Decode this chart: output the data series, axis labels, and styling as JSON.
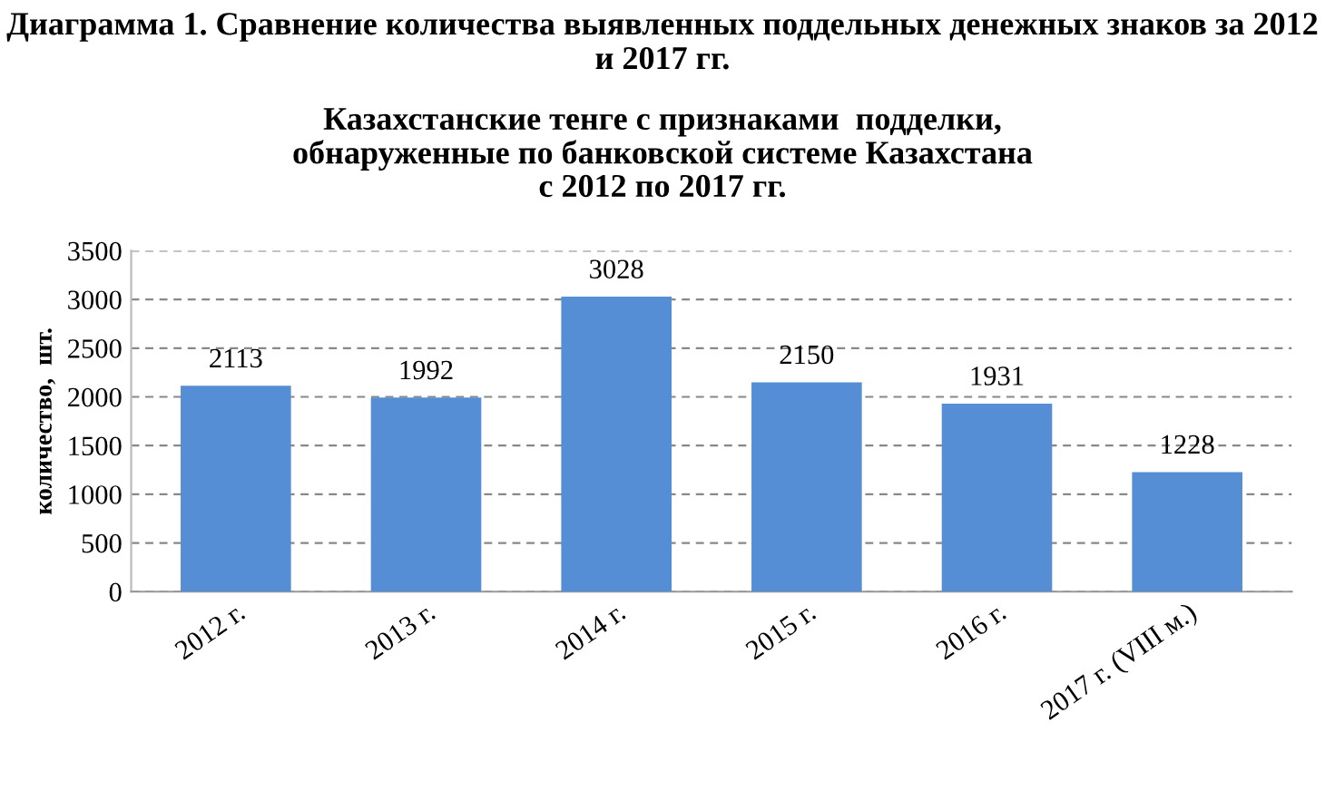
{
  "chart_data": {
    "type": "bar",
    "title": "Диаграмма 1. Сравнение количества выявленных поддельных денежных знаков за 2012 и 2017 гг.",
    "subtitle": "Казахстанские тенге с признаками  подделки,\nобнаруженные по банковской системе Казахстана\nс 2012 по 2017 гг.",
    "ylabel": "количество,  шт.",
    "categories": [
      "2012 г.",
      "2013 г.",
      "2014 г.",
      "2015 г.",
      "2016 г.",
      "2017 г. (VIII м.)"
    ],
    "values": [
      2113,
      1992,
      3028,
      2150,
      1931,
      1228
    ],
    "color": "#558ed5",
    "ylim": [
      0,
      3500
    ],
    "yticks": [
      0,
      500,
      1000,
      1500,
      2000,
      2500,
      3000,
      3500
    ],
    "grid": "y",
    "data_labels": true
  }
}
